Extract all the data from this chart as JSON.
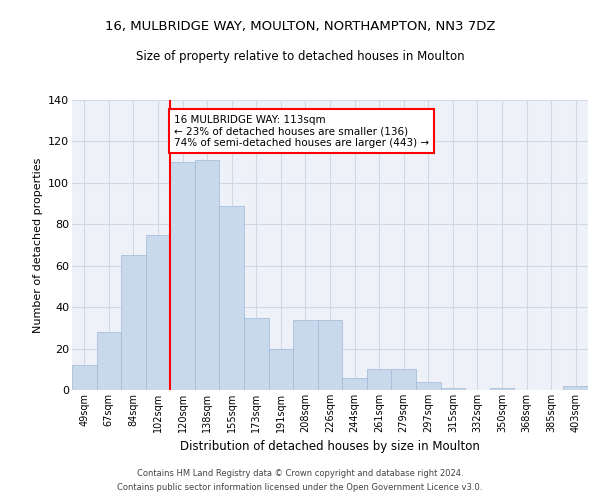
{
  "title1": "16, MULBRIDGE WAY, MOULTON, NORTHAMPTON, NN3 7DZ",
  "title2": "Size of property relative to detached houses in Moulton",
  "xlabel": "Distribution of detached houses by size in Moulton",
  "ylabel": "Number of detached properties",
  "bin_labels": [
    "49sqm",
    "67sqm",
    "84sqm",
    "102sqm",
    "120sqm",
    "138sqm",
    "155sqm",
    "173sqm",
    "191sqm",
    "208sqm",
    "226sqm",
    "244sqm",
    "261sqm",
    "279sqm",
    "297sqm",
    "315sqm",
    "332sqm",
    "350sqm",
    "368sqm",
    "385sqm",
    "403sqm"
  ],
  "bar_heights": [
    12,
    28,
    65,
    75,
    110,
    111,
    89,
    35,
    20,
    34,
    34,
    6,
    10,
    10,
    4,
    1,
    0,
    1,
    0,
    0,
    2
  ],
  "bar_color": "#c9d9ec",
  "bar_edgecolor": "#a0b8d8",
  "vline_x_bin": 3.5,
  "annotation_text": "16 MULBRIDGE WAY: 113sqm\n← 23% of detached houses are smaller (136)\n74% of semi-detached houses are larger (443) →",
  "annotation_box_color": "white",
  "annotation_box_edgecolor": "red",
  "vline_color": "red",
  "footer1": "Contains HM Land Registry data © Crown copyright and database right 2024.",
  "footer2": "Contains public sector information licensed under the Open Government Licence v3.0.",
  "ylim": [
    0,
    140
  ],
  "yticks": [
    0,
    20,
    40,
    60,
    80,
    100,
    120,
    140
  ],
  "grid_color": "#d0d8e8",
  "background_color": "#eef2f8"
}
